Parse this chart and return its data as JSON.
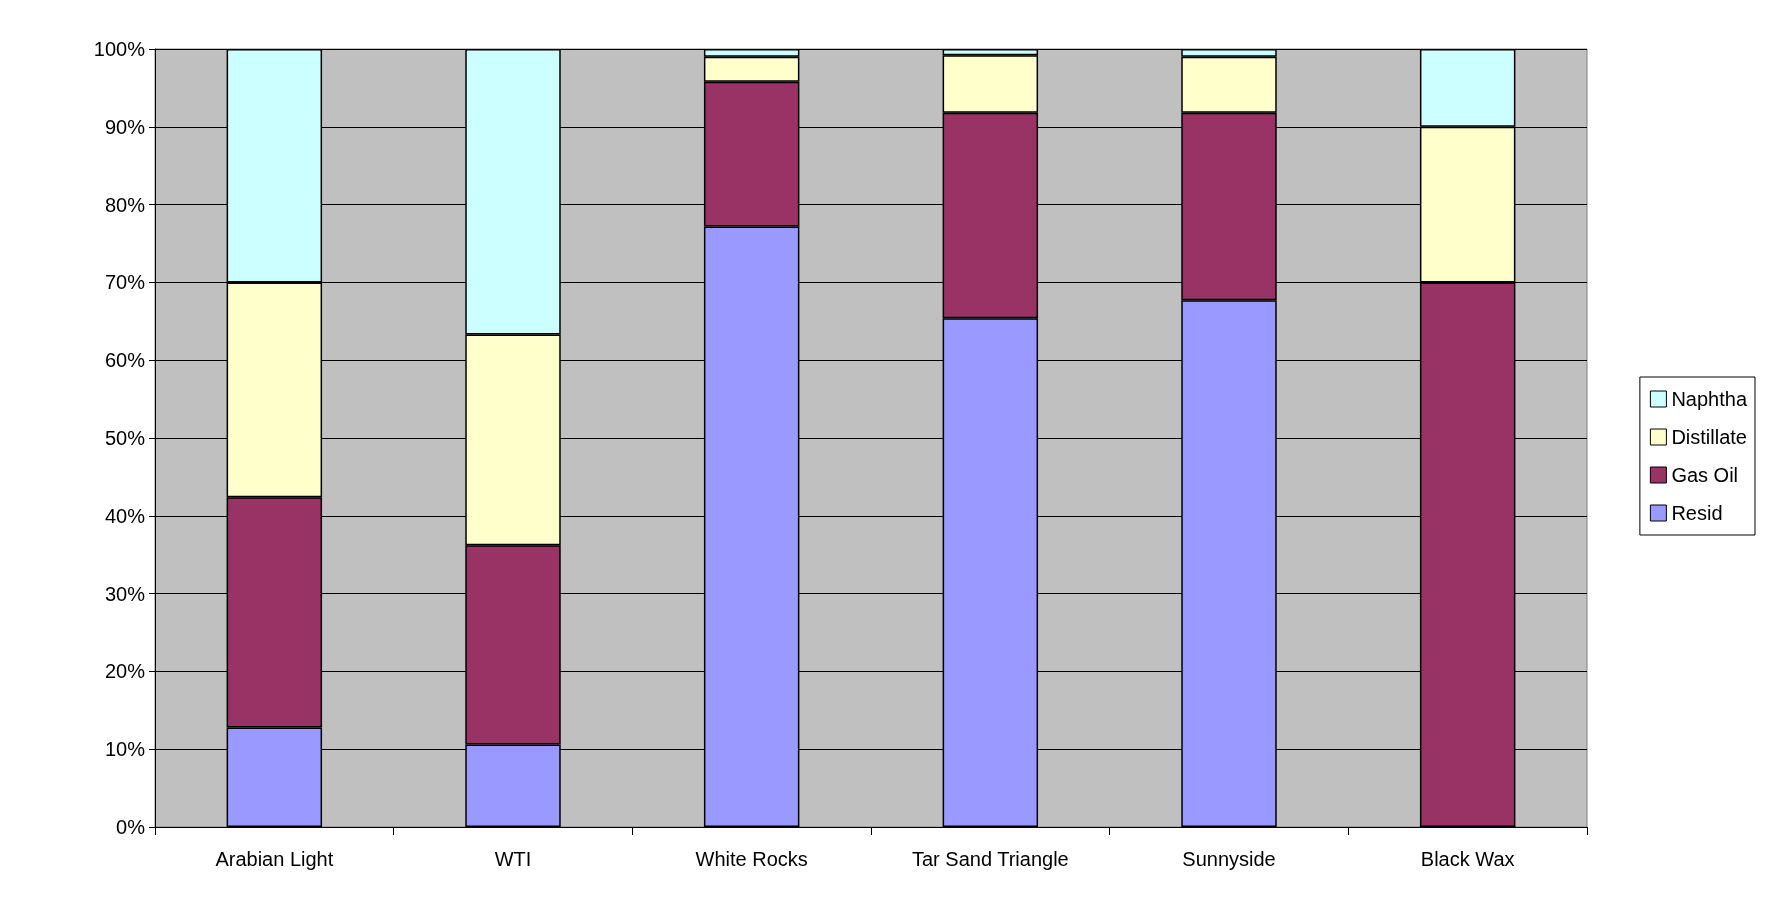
{
  "chart_data": {
    "type": "bar",
    "stacked": true,
    "categories": [
      "Arabian Light",
      "WTI",
      "White Rocks",
      "Tar Sand Triangle",
      "Sunnyside",
      "Black Wax"
    ],
    "series": [
      {
        "name": "Resid",
        "color": "#9999ff",
        "values": [
          12.8,
          10.6,
          77.2,
          65.4,
          67.7,
          0
        ]
      },
      {
        "name": "Gas Oil",
        "color": "#993366",
        "values": [
          29.6,
          25.6,
          18.6,
          26.4,
          24.1,
          70.0
        ]
      },
      {
        "name": "Distillate",
        "color": "#ffffcc",
        "values": [
          27.6,
          27.1,
          3.2,
          7.4,
          7.2,
          20.0
        ]
      },
      {
        "name": "Naphtha",
        "color": "#ccffff",
        "values": [
          30.0,
          36.7,
          1.0,
          0.8,
          1.0,
          10.0
        ]
      }
    ],
    "ylim": [
      0,
      100
    ],
    "yticks": [
      {
        "value": 0,
        "label": "0%"
      },
      {
        "value": 10,
        "label": "10%"
      },
      {
        "value": 20,
        "label": "20%"
      },
      {
        "value": 30,
        "label": "30%"
      },
      {
        "value": 40,
        "label": "40%"
      },
      {
        "value": 50,
        "label": "50%"
      },
      {
        "value": 60,
        "label": "60%"
      },
      {
        "value": 70,
        "label": "70%"
      },
      {
        "value": 80,
        "label": "80%"
      },
      {
        "value": 90,
        "label": "90%"
      },
      {
        "value": 100,
        "label": "100%"
      }
    ],
    "grid": "y",
    "legend": "right"
  }
}
